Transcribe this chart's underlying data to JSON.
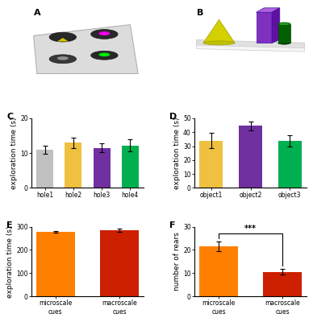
{
  "panel_C": {
    "categories": [
      "hole1",
      "hole2",
      "hole3",
      "hole4"
    ],
    "values": [
      11.0,
      13.0,
      11.5,
      12.2
    ],
    "errors": [
      1.2,
      1.5,
      1.3,
      1.8
    ],
    "colors": [
      "#c0c0c0",
      "#f0c040",
      "#7030a0",
      "#00b050"
    ],
    "ylabel": "exploration time (s)",
    "ylim": [
      0,
      20
    ],
    "yticks": [
      0,
      10,
      20
    ]
  },
  "panel_D": {
    "categories": [
      "object1",
      "object2",
      "object3"
    ],
    "values": [
      34.0,
      44.5,
      34.0
    ],
    "errors": [
      5.5,
      3.0,
      4.0
    ],
    "colors": [
      "#f0c040",
      "#7030a0",
      "#00b050"
    ],
    "ylabel": "exploration time (s)",
    "ylim": [
      0,
      50
    ],
    "yticks": [
      0,
      10,
      20,
      30,
      40,
      50
    ]
  },
  "panel_E": {
    "categories": [
      "microscale\ncues",
      "macroscale\ncues"
    ],
    "values": [
      278,
      285
    ],
    "errors": [
      5,
      6
    ],
    "colors": [
      "#ff8000",
      "#cc2000"
    ],
    "ylabel": "exploration time (s)",
    "ylim": [
      0,
      300
    ],
    "yticks": [
      0,
      100,
      200,
      300
    ]
  },
  "panel_F": {
    "categories": [
      "microscale\ncues",
      "macroscale\ncues"
    ],
    "values": [
      21.5,
      10.5
    ],
    "errors": [
      2.0,
      1.2
    ],
    "colors": [
      "#ff8000",
      "#cc2000"
    ],
    "ylabel": "number of rears",
    "ylim": [
      0,
      30
    ],
    "yticks": [
      0,
      10,
      20,
      30
    ],
    "sig_label": "***"
  },
  "bg_top": "#5b7da0",
  "bg_chart": "#ffffff",
  "label_fontsize": 6.5,
  "tick_fontsize": 5.5,
  "panel_label_fontsize": 8,
  "bar_width": 0.6
}
